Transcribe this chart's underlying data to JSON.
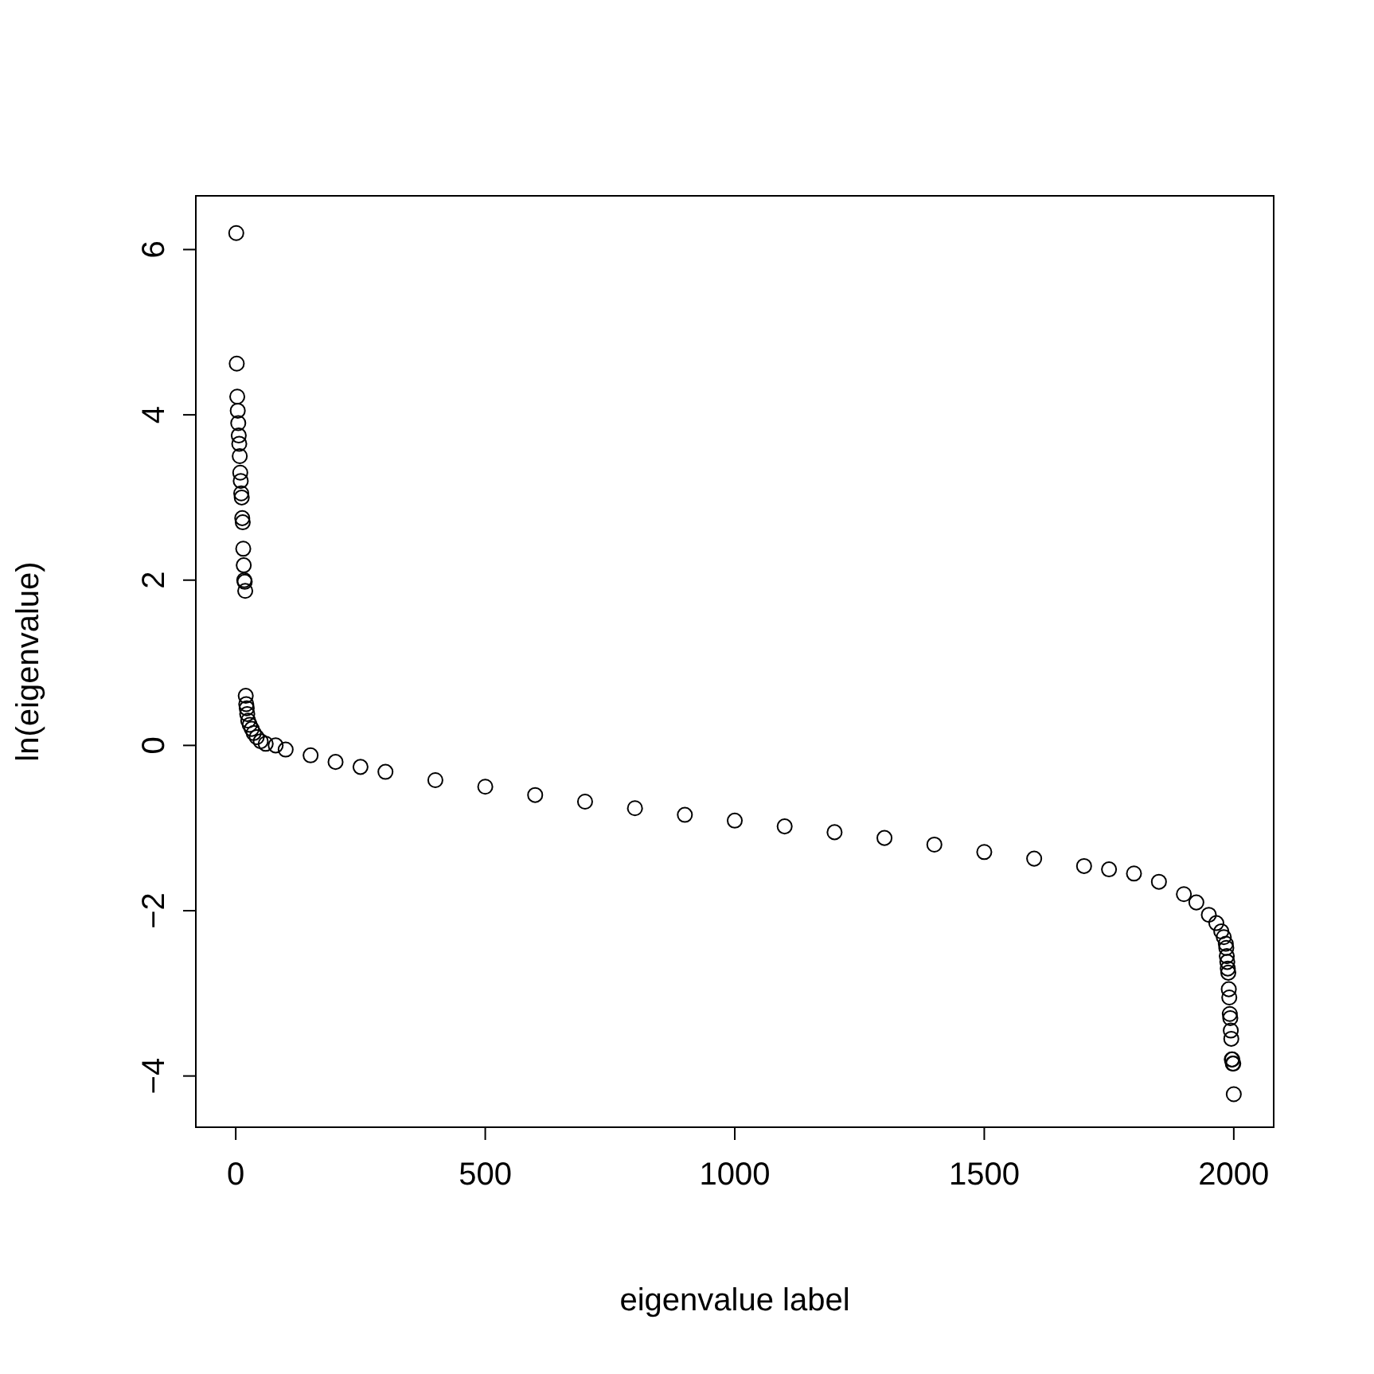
{
  "chart_data": {
    "type": "scatter",
    "xlabel": "eigenvalue label",
    "ylabel": "ln(eigenvalue)",
    "marker": "circle",
    "grid": false,
    "xlim": [
      -80,
      2080
    ],
    "ylim": [
      -4.62,
      6.65
    ],
    "xticks": [
      0,
      500,
      1000,
      1500,
      2000
    ],
    "yticks": [
      -4,
      -2,
      0,
      2,
      4,
      6
    ],
    "series": [
      {
        "color": "#000000",
        "x": [
          1,
          2,
          3,
          4,
          5,
          6,
          7,
          8,
          9,
          10,
          11,
          12,
          13,
          14,
          15,
          16,
          17,
          18,
          19,
          20,
          21,
          22,
          23,
          25,
          28,
          32,
          36,
          42,
          50,
          60,
          80,
          100,
          150,
          200,
          250,
          300,
          400,
          500,
          600,
          700,
          800,
          900,
          1000,
          1100,
          1200,
          1300,
          1400,
          1500,
          1600,
          1700,
          1750,
          1800,
          1850,
          1900,
          1925,
          1950,
          1965,
          1975,
          1980,
          1984,
          1985,
          1986,
          1987,
          1988,
          1989,
          1990,
          1991,
          1992,
          1993,
          1994,
          1995,
          1996,
          1997,
          1998,
          1999,
          2000
        ],
        "values": [
          6.2,
          4.62,
          4.22,
          4.05,
          3.9,
          3.75,
          3.65,
          3.5,
          3.3,
          3.2,
          3.05,
          3.0,
          2.75,
          2.7,
          2.38,
          2.18,
          2.0,
          1.98,
          1.87,
          0.6,
          0.5,
          0.45,
          0.38,
          0.3,
          0.25,
          0.2,
          0.15,
          0.1,
          0.05,
          0.02,
          0.0,
          -0.05,
          -0.12,
          -0.2,
          -0.26,
          -0.32,
          -0.42,
          -0.5,
          -0.6,
          -0.68,
          -0.76,
          -0.84,
          -0.91,
          -0.98,
          -1.05,
          -1.12,
          -1.2,
          -1.29,
          -1.37,
          -1.46,
          -1.5,
          -1.55,
          -1.65,
          -1.8,
          -1.9,
          -2.05,
          -2.15,
          -2.25,
          -2.32,
          -2.4,
          -2.45,
          -2.55,
          -2.62,
          -2.7,
          -2.75,
          -2.95,
          -3.05,
          -3.25,
          -3.3,
          -3.45,
          -3.55,
          -3.8,
          -3.8,
          -3.85,
          -3.85,
          -4.22
        ]
      }
    ]
  }
}
